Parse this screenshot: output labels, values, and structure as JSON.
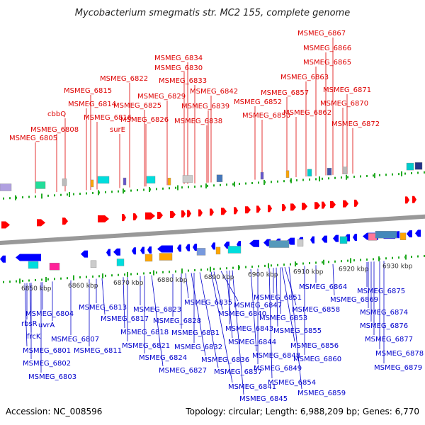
{
  "title": "Mycobacterium smegmatis str. MC2 155, complete genome",
  "accession": "Accession: NC_008596",
  "summary": "Topology: circular; Length: 6,988,209 bp; Genes: 6,770",
  "colors": {
    "forward_label": "#dd0000",
    "reverse_label": "#0000cc",
    "forward_gene": "#ff0000",
    "reverse_gene": "#0000ff",
    "backbone": "#999999",
    "tick": "#22aa22"
  },
  "scale_labels": [
    "6850 kbp",
    "6860 kbp",
    "6870 kbp",
    "6880 kbp",
    "6890 kbp",
    "6900 kbp",
    "6910 kbp",
    "6920 kbp",
    "6930 kbp"
  ],
  "top_labels": [
    "MSMEG_6805",
    "MSMEG_6808",
    "cbbQ",
    "MSMEG_6814",
    "MSMEG_6815",
    "MSMEG_6816",
    "MSMEG_6822",
    "surE",
    "MSMEG_6825",
    "MSMEG_6826",
    "MSMEG_6829",
    "MSMEG_6830",
    "MSMEG_6834",
    "MSMEG_6833",
    "MSMEG_6838",
    "MSMEG_6839",
    "MSMEG_6842",
    "MSMEG_6850",
    "MSMEG_6852",
    "MSMEG_6857",
    "MSMEG_6862",
    "MSMEG_6863",
    "MSMEG_6865",
    "MSMEG_6866",
    "MSMEG_6867",
    "MSMEG_6870",
    "MSMEG_6871",
    "MSMEG_6872"
  ],
  "bottom_labels": [
    "rbsR",
    "frcK",
    "MSMEG_6801",
    "MSMEG_6802",
    "MSMEG_6803",
    "MSMEG_6804",
    "uvrA",
    "MSMEG_6807",
    "MSMEG_6811",
    "MSMEG_6813",
    "MSMEG_6817",
    "MSMEG_6818",
    "MSMEG_6821",
    "MSMEG_6823",
    "MSMEG_6824",
    "MSMEG_6827",
    "MSMEG_6828",
    "MSMEG_6831",
    "MSMEG_6832",
    "MSMEG_6835",
    "MSMEG_6836",
    "MSMEG_6837",
    "MSMEG_6840",
    "MSMEG_6841",
    "MSMEG_6843",
    "MSMEG_6844",
    "MSMEG_6845",
    "MSMEG_6847",
    "MSMEG_6848",
    "MSMEG_6849",
    "MSMEG_6851",
    "MSMEG_6853",
    "MSMEG_6854",
    "MSMEG_6855",
    "MSMEG_6856",
    "MSMEG_6858",
    "MSMEG_6859",
    "MSMEG_6860",
    "MSMEG_6864",
    "MSMEG_6869",
    "MSMEG_6874",
    "MSMEG_6875",
    "MSMEG_6876",
    "MSMEG_6877",
    "MSMEG_6878",
    "MSMEG_6879"
  ]
}
